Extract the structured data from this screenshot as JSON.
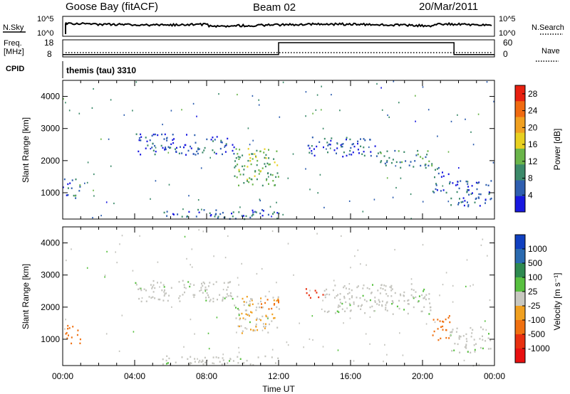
{
  "header": {
    "station": "Goose Bay (fitACF)",
    "beam": "Beam 02",
    "date": "20/Mar/2011"
  },
  "colors": {
    "power_scale": [
      "#1818e0",
      "#2f5fb0",
      "#3c8a6a",
      "#6ab54a",
      "#e8d020",
      "#f0a020",
      "#f06a10",
      "#e82010"
    ],
    "velocity_scale": [
      "#1040c0",
      "#2a6ab0",
      "#2e8a50",
      "#58c040",
      "#c8c8c0",
      "#f0a020",
      "#f07010",
      "#e83010",
      "#e81010"
    ],
    "scatter_grey": "#c4c4be"
  },
  "chart_data": [
    {
      "type": "line",
      "panel": "noise-search",
      "ylabel_left": "N.Sky",
      "ylabel_right": "N.Search",
      "y_ticks_left": [
        "10^5",
        "10^0"
      ],
      "y_ticks_right": [
        "10^5",
        "10^0"
      ],
      "y_scale": "log"
    },
    {
      "type": "line",
      "panel": "frequency-nave",
      "ylabel_left": "Freq.",
      "ylabel_left_unit": "[MHz]",
      "ylabel_right": "Nave",
      "y_ticks_left": [
        18,
        8
      ],
      "y_ticks_right": [
        60,
        0
      ],
      "series": [
        {
          "name": "Nave",
          "x": [
            "00:00",
            "12:00",
            "12:00",
            "21:45",
            "21:45",
            "24:00"
          ],
          "values": [
            8,
            8,
            50,
            50,
            8,
            8
          ]
        }
      ]
    },
    {
      "type": "table",
      "panel": "cpid",
      "label": "CPID",
      "value": "themis (tau) 3310"
    },
    {
      "type": "heatmap",
      "panel": "power",
      "ylabel": "Slant Range [km]",
      "y_ticks": [
        1000,
        2000,
        3000,
        4000
      ],
      "ylim": [
        180,
        4500
      ],
      "colorbar_label": "Power [dB]",
      "colorbar_ticks": [
        4,
        8,
        12,
        16,
        20,
        24,
        28
      ],
      "colorbar_range": [
        0,
        30
      ],
      "echo_regions": [
        {
          "t0": 0.0,
          "t1": 1.0,
          "r0": 850,
          "r1": 1450,
          "level": 8
        },
        {
          "t0": 4.0,
          "t1": 9.5,
          "r0": 2200,
          "r1": 2850,
          "level": 5
        },
        {
          "t0": 9.5,
          "t1": 12.0,
          "r0": 1200,
          "r1": 2400,
          "level": 13
        },
        {
          "t0": 13.5,
          "t1": 17.5,
          "r0": 2150,
          "r1": 2750,
          "level": 6
        },
        {
          "t0": 17.5,
          "t1": 20.5,
          "r0": 1800,
          "r1": 2350,
          "level": 9
        },
        {
          "t0": 20.5,
          "t1": 21.5,
          "r0": 1000,
          "r1": 1800,
          "level": 7
        },
        {
          "t0": 21.5,
          "t1": 23.8,
          "r0": 600,
          "r1": 1400,
          "level": 6
        },
        {
          "t0": 5.5,
          "t1": 12.0,
          "r0": 200,
          "r1": 500,
          "level": 6
        }
      ]
    },
    {
      "type": "heatmap",
      "panel": "velocity",
      "ylabel": "Slant Range [km]",
      "y_ticks": [
        1000,
        2000,
        3000,
        4000
      ],
      "ylim": [
        180,
        4500
      ],
      "xlabel": "Time UT",
      "x_ticks": [
        "00:00",
        "04:00",
        "08:00",
        "12:00",
        "16:00",
        "20:00",
        "00:00"
      ],
      "colorbar_label": "Velocity [m s⁻¹]",
      "colorbar_ticks": [
        1000,
        500,
        100,
        25,
        -25,
        -100,
        -500,
        -1000
      ],
      "echo_regions": [
        {
          "t0": 0.0,
          "t1": 1.0,
          "r0": 850,
          "r1": 1450,
          "vel": -150
        },
        {
          "t0": 4.0,
          "t1": 9.5,
          "r0": 2200,
          "r1": 2850,
          "vel": 0
        },
        {
          "t0": 9.5,
          "t1": 12.0,
          "r0": 1200,
          "r1": 2400,
          "vel": -30
        },
        {
          "t0": 11.0,
          "t1": 12.0,
          "r0": 1900,
          "r1": 2300,
          "vel": -200
        },
        {
          "t0": 13.5,
          "t1": 14.5,
          "r0": 2300,
          "r1": 2600,
          "vel": -700
        },
        {
          "t0": 14.5,
          "t1": 20.5,
          "r0": 1800,
          "r1": 2750,
          "vel": 0
        },
        {
          "t0": 20.5,
          "t1": 21.5,
          "r0": 1000,
          "r1": 1800,
          "vel": -200
        },
        {
          "t0": 21.5,
          "t1": 23.8,
          "r0": 600,
          "r1": 1400,
          "vel": 0
        },
        {
          "t0": 5.5,
          "t1": 12.0,
          "r0": 200,
          "r1": 500,
          "vel": 0
        }
      ]
    }
  ]
}
